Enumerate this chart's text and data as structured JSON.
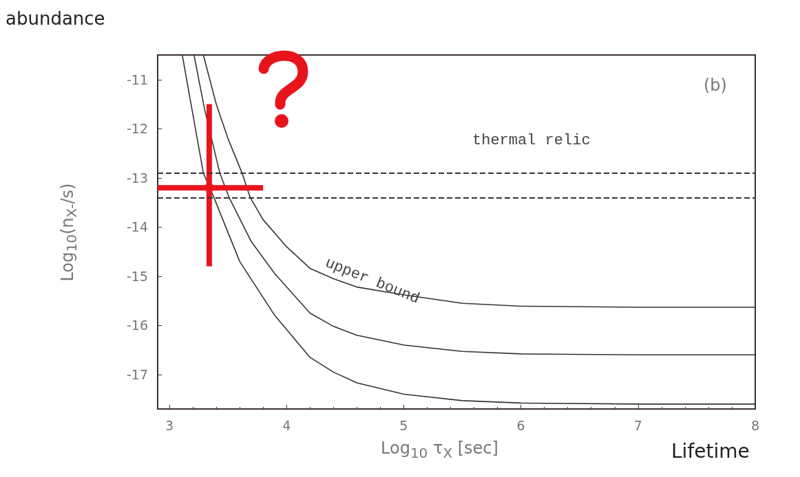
{
  "chart_data": {
    "type": "line",
    "xlabel": "Log$_{10}$ τ$_{X}$  [sec]",
    "ylabel": "Log$_{10}$(n$_{X-}$/s)",
    "xlim": [
      2.9,
      8
    ],
    "ylim": [
      -17.7,
      -10.5
    ],
    "xticks": [
      3,
      4,
      5,
      6,
      7,
      8
    ],
    "yticks": [
      -11,
      -12,
      -13,
      -14,
      -15,
      -16,
      -17
    ],
    "series": [
      {
        "color": "#3b3030",
        "x": [
          3.29,
          3.4,
          3.5,
          3.62,
          3.69,
          3.8,
          4.0,
          4.2,
          4.4,
          4.6,
          5.0,
          5.5,
          6.0,
          7.0,
          8.0
        ],
        "values": [
          -10.5,
          -11.5,
          -12.2,
          -12.9,
          -13.4,
          -13.85,
          -14.4,
          -14.84,
          -15.05,
          -15.22,
          -15.38,
          -15.55,
          -15.61,
          -15.63,
          -15.63
        ]
      },
      {
        "color": "#3b3030",
        "x": [
          3.21,
          3.3,
          3.43,
          3.51,
          3.7,
          3.9,
          4.2,
          4.4,
          4.6,
          5.0,
          5.5,
          6.0,
          7.0,
          8.0
        ],
        "values": [
          -10.5,
          -11.6,
          -12.9,
          -13.4,
          -14.3,
          -14.95,
          -15.75,
          -16.02,
          -16.2,
          -16.4,
          -16.53,
          -16.58,
          -16.6,
          -16.6
        ]
      },
      {
        "color": "#3b3030",
        "x": [
          3.11,
          3.2,
          3.29,
          3.38,
          3.6,
          3.9,
          4.2,
          4.4,
          4.6,
          5.0,
          5.5,
          6.0,
          7.0,
          8.0
        ],
        "values": [
          -10.5,
          -11.7,
          -12.9,
          -13.4,
          -14.7,
          -15.8,
          -16.65,
          -16.95,
          -17.17,
          -17.4,
          -17.53,
          -17.58,
          -17.6,
          -17.6
        ]
      },
      {
        "type": "scatter",
        "color": "#e8141c",
        "marker": "circle",
        "x": [
          3.34
        ],
        "values": [
          -13.2
        ],
        "errors": [
          [
            -14.8,
            -11.5
          ]
        ],
        "xerrors": [
          [
            2.9,
            3.8
          ]
        ]
      }
    ],
    "ref_lines": [
      {
        "axis": "y",
        "value": -12.9,
        "color": "#3b3030",
        "line_style": "dashed"
      },
      {
        "axis": "y",
        "value": -13.4,
        "color": "#3b3030",
        "line_style": "dashed"
      }
    ],
    "annotations": [
      "abundance",
      "Lifetime",
      "(b)",
      "thermal relic",
      "upper bound"
    ]
  }
}
